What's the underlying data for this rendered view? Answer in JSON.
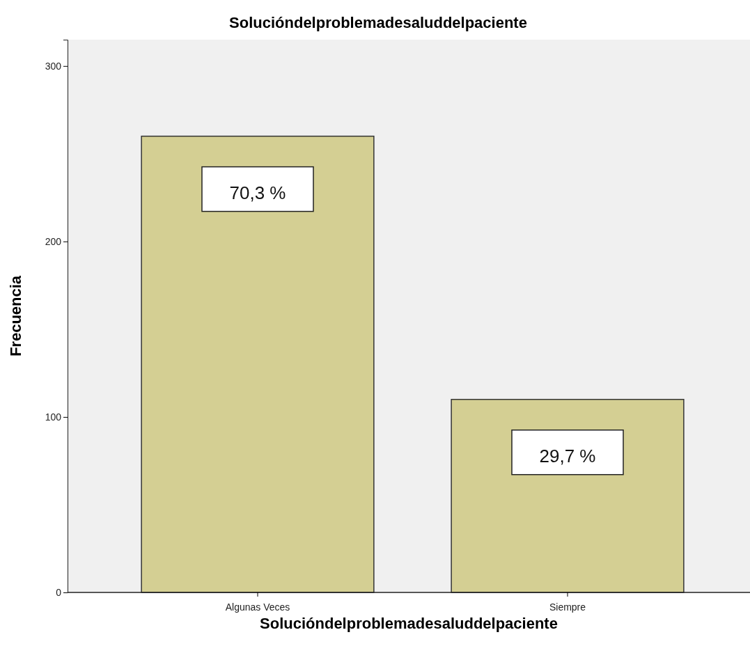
{
  "chart_data": {
    "type": "bar",
    "title": "Solucióndelproblemadesaluddelpaciente",
    "xlabel": "Solucióndelproblemadesaluddelpaciente",
    "ylabel": "Frecuencia",
    "categories": [
      "Algunas Veces",
      "Siempre"
    ],
    "values": [
      260,
      110
    ],
    "annotations": [
      {
        "text": "70,3 %",
        "x": "Algunas Veces",
        "y": 260
      },
      {
        "text": "29,7 %",
        "x": "Siempre",
        "y": 110
      }
    ],
    "color": "#d4cf93",
    "ylim": [
      0,
      315
    ],
    "yticks": [
      0,
      100,
      200,
      300
    ],
    "grid": false
  }
}
